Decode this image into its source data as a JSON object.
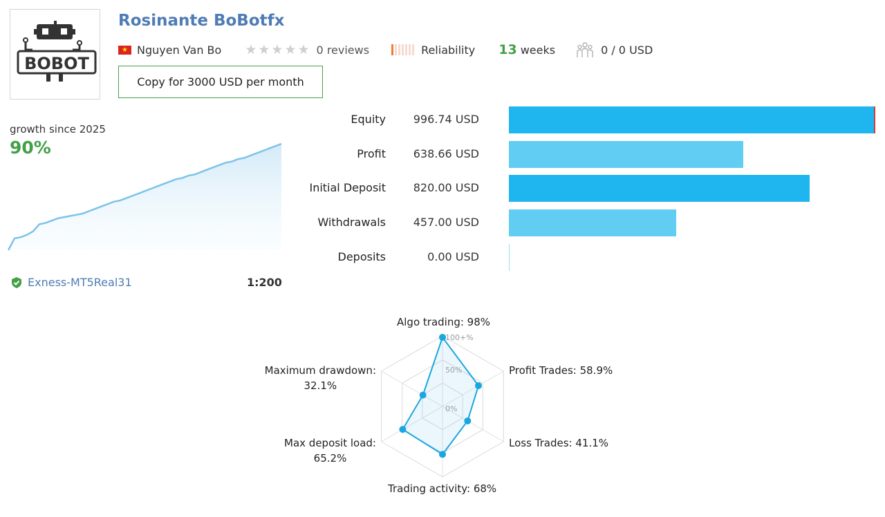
{
  "colors": {
    "title": "#4f7cb5",
    "growth_green": "#43a047",
    "bar_dark": "#1fb5ef",
    "bar_light": "#62cdf3",
    "reliability": "#f07a2f",
    "radar_line": "#1aa6df"
  },
  "header": {
    "logo_text": "BOBOT",
    "title": "Rosinante BoBotfx",
    "author": "Nguyen Van Bo",
    "country_flag": "vietnam-flag",
    "rating_stars": 0,
    "reviews": "0 reviews",
    "reliability_label": "Reliability",
    "reliability_level": 0.1,
    "weeks_number": "13",
    "weeks_label": "weeks",
    "subscribers": "0 / 0 USD",
    "copy_button": "Copy for 3000 USD per month"
  },
  "growth": {
    "label": "growth since 2025",
    "value": "90%",
    "curve": [
      0,
      10,
      11,
      13,
      16,
      22,
      23,
      25,
      27,
      28,
      29,
      30,
      31,
      33,
      35,
      37,
      39,
      41,
      42,
      44,
      46,
      48,
      50,
      52,
      54,
      56,
      58,
      60,
      61,
      63,
      64,
      66,
      68,
      70,
      72,
      74,
      75,
      77,
      78,
      80,
      82,
      84,
      86,
      88,
      90
    ]
  },
  "account": {
    "broker": "Exness-MT5Real31",
    "leverage": "1:200"
  },
  "stats": [
    {
      "label": "Equity",
      "value": "996.74 USD",
      "fill": 1.0,
      "style": "dark"
    },
    {
      "label": "Profit",
      "value": "638.66 USD",
      "fill": 0.64,
      "style": "light"
    },
    {
      "label": "Initial Deposit",
      "value": "820.00 USD",
      "fill": 0.82,
      "style": "dark"
    },
    {
      "label": "Withdrawals",
      "value": "457.00 USD",
      "fill": 0.457,
      "style": "light"
    },
    {
      "label": "Deposits",
      "value": "0.00 USD",
      "fill": 0.0,
      "style": "dark"
    }
  ],
  "radar": {
    "scale_labels": [
      "100+%",
      "50%",
      "0%"
    ],
    "axes": [
      {
        "key": "algo",
        "label": "Algo trading: 98%",
        "value": 98
      },
      {
        "key": "profit-trades",
        "label": "Profit Trades: 58.9%",
        "value": 58.9
      },
      {
        "key": "loss-trades",
        "label": "Loss Trades: 41.1%",
        "value": 41.1
      },
      {
        "key": "activity",
        "label": "Trading activity: 68%",
        "value": 68
      },
      {
        "key": "deposit-load",
        "label_line1": "Max deposit load:",
        "label_line2": "65.2%",
        "value": 65.2
      },
      {
        "key": "drawdown",
        "label_line1": "Maximum drawdown:",
        "label_line2": "32.1%",
        "value": 32.1
      }
    ]
  }
}
